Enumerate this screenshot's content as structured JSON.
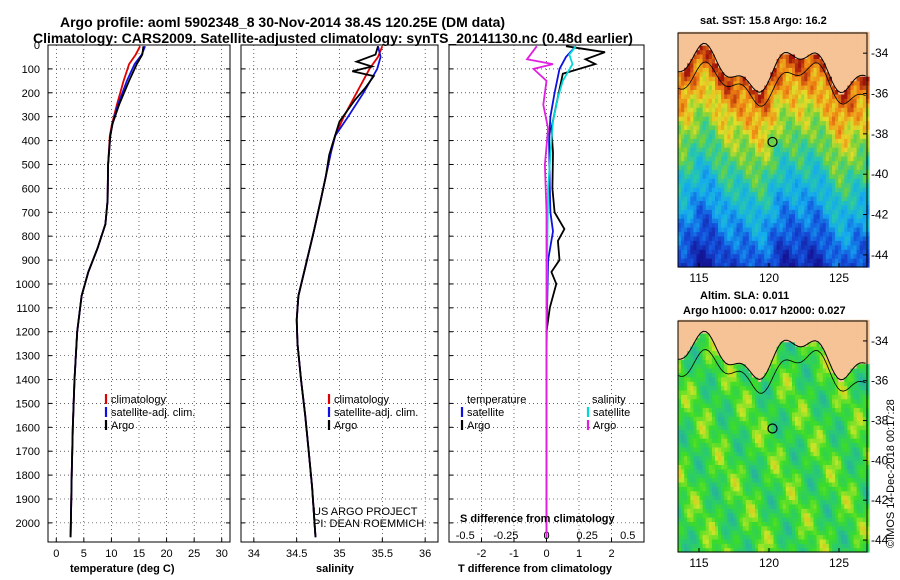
{
  "header": {
    "title_line1": "Argo profile: aoml 5902348_8 30-Nov-2014 38.4S 120.25E (DM data)",
    "title_line2": "Climatology: CARS2009. Satellite-adjusted climatology: synTS_20141130.nc (0.48d earlier)"
  },
  "depth_ticks": [
    "0",
    "100",
    "200",
    "300",
    "400",
    "500",
    "600",
    "700",
    "800",
    "900",
    "1000",
    "1100",
    "1200",
    "1300",
    "1400",
    "1500",
    "1600",
    "1700",
    "1800",
    "1900",
    "2000"
  ],
  "colors": {
    "climatology": "#e00000",
    "satellite": "#1010e0",
    "argo": "#000000",
    "sal_satellite": "#00d8d8",
    "sal_argo": "#e020e0"
  },
  "chart_data": [
    {
      "type": "line",
      "xlabel": "temperature (deg C)",
      "xticks": [
        "0",
        "5",
        "10",
        "15",
        "20",
        "25",
        "30"
      ],
      "xlim": [
        -1.5,
        31.5
      ],
      "ylim": [
        2080,
        0
      ],
      "legend": [
        "climatology",
        "satellite-adj. clim.",
        "Argo"
      ],
      "series": [
        {
          "name": "climatology",
          "color": "#e00000",
          "points": [
            [
              15.2,
              5
            ],
            [
              14.4,
              40
            ],
            [
              13.2,
              80
            ],
            [
              12.2,
              150
            ],
            [
              11.0,
              250
            ],
            [
              10.1,
              330
            ],
            [
              9.7,
              380
            ],
            [
              9.4,
              500
            ],
            [
              9.3,
              650
            ],
            [
              8.9,
              750
            ],
            [
              7.5,
              850
            ],
            [
              5.8,
              950
            ],
            [
              4.6,
              1050
            ],
            [
              3.8,
              1200
            ],
            [
              3.3,
              1400
            ],
            [
              3.0,
              1600
            ],
            [
              2.8,
              1800
            ],
            [
              2.6,
              2060
            ]
          ]
        },
        {
          "name": "satellite-adj. clim.",
          "color": "#1010e0",
          "points": [
            [
              16.1,
              5
            ],
            [
              15.5,
              40
            ],
            [
              14.2,
              80
            ],
            [
              12.8,
              150
            ],
            [
              11.2,
              250
            ],
            [
              10.2,
              330
            ],
            [
              9.8,
              380
            ],
            [
              9.4,
              500
            ],
            [
              9.3,
              650
            ],
            [
              8.9,
              750
            ],
            [
              7.5,
              850
            ],
            [
              5.8,
              950
            ],
            [
              4.6,
              1050
            ],
            [
              3.8,
              1200
            ],
            [
              3.3,
              1400
            ],
            [
              3.0,
              1600
            ],
            [
              2.8,
              1800
            ],
            [
              2.6,
              2060
            ]
          ]
        },
        {
          "name": "Argo",
          "color": "#000000",
          "points": [
            [
              15.8,
              5
            ],
            [
              15.6,
              40
            ],
            [
              14.6,
              80
            ],
            [
              13.2,
              150
            ],
            [
              11.4,
              250
            ],
            [
              10.2,
              330
            ],
            [
              9.8,
              380
            ],
            [
              9.4,
              500
            ],
            [
              9.3,
              650
            ],
            [
              8.9,
              750
            ],
            [
              7.5,
              850
            ],
            [
              5.8,
              950
            ],
            [
              4.6,
              1050
            ],
            [
              3.8,
              1200
            ],
            [
              3.3,
              1400
            ],
            [
              3.0,
              1600
            ],
            [
              2.8,
              1800
            ],
            [
              2.6,
              2060
            ]
          ]
        }
      ]
    },
    {
      "type": "line",
      "xlabel": "salinity",
      "xticks": [
        "34",
        "34.5",
        "35",
        "35.5",
        "36"
      ],
      "xlim": [
        33.85,
        36.15
      ],
      "ylim": [
        2080,
        0
      ],
      "legend": [
        "climatology",
        "satellite-adj. clim.",
        "Argo"
      ],
      "annotation": [
        "US ARGO PROJECT",
        "PI: DEAN ROEMMICH"
      ],
      "series": [
        {
          "name": "climatology",
          "color": "#e00000",
          "points": [
            [
              35.5,
              5
            ],
            [
              35.45,
              50
            ],
            [
              35.35,
              100
            ],
            [
              35.2,
              200
            ],
            [
              35.05,
              300
            ],
            [
              34.95,
              380
            ],
            [
              34.9,
              450
            ],
            [
              34.84,
              550
            ],
            [
              34.78,
              650
            ],
            [
              34.7,
              780
            ],
            [
              34.62,
              900
            ],
            [
              34.52,
              1050
            ],
            [
              34.5,
              1150
            ],
            [
              34.51,
              1250
            ],
            [
              34.55,
              1400
            ],
            [
              34.6,
              1550
            ],
            [
              34.64,
              1700
            ],
            [
              34.68,
              1850
            ],
            [
              34.72,
              2060
            ]
          ]
        },
        {
          "name": "satellite-adj. clim.",
          "color": "#1010e0",
          "points": [
            [
              35.45,
              5
            ],
            [
              35.48,
              50
            ],
            [
              35.44,
              100
            ],
            [
              35.28,
              200
            ],
            [
              35.1,
              300
            ],
            [
              34.95,
              380
            ],
            [
              34.9,
              450
            ],
            [
              34.84,
              550
            ],
            [
              34.78,
              650
            ],
            [
              34.7,
              780
            ],
            [
              34.62,
              900
            ],
            [
              34.52,
              1050
            ],
            [
              34.5,
              1150
            ],
            [
              34.51,
              1250
            ],
            [
              34.55,
              1400
            ],
            [
              34.6,
              1550
            ],
            [
              34.64,
              1700
            ],
            [
              34.68,
              1850
            ],
            [
              34.72,
              2060
            ]
          ]
        },
        {
          "name": "Argo",
          "color": "#000000",
          "points": [
            [
              35.45,
              5
            ],
            [
              35.42,
              40
            ],
            [
              35.2,
              70
            ],
            [
              35.38,
              90
            ],
            [
              35.15,
              110
            ],
            [
              35.4,
              130
            ],
            [
              35.3,
              180
            ],
            [
              35.18,
              230
            ],
            [
              35.0,
              320
            ],
            [
              34.93,
              400
            ],
            [
              34.88,
              460
            ],
            [
              34.84,
              550
            ],
            [
              34.78,
              650
            ],
            [
              34.7,
              780
            ],
            [
              34.62,
              900
            ],
            [
              34.52,
              1050
            ],
            [
              34.5,
              1150
            ],
            [
              34.51,
              1250
            ],
            [
              34.55,
              1400
            ],
            [
              34.6,
              1550
            ],
            [
              34.64,
              1700
            ],
            [
              34.68,
              1850
            ],
            [
              34.72,
              2060
            ]
          ]
        }
      ]
    },
    {
      "type": "line",
      "xlabel": "T difference from climatology",
      "xlabel2": "S difference from climatology",
      "xticks": [
        "-2",
        "-1",
        "0",
        "1",
        "2"
      ],
      "xticks2": [
        "-0.5",
        "-0.25",
        "0",
        "0.25",
        "0.5"
      ],
      "xlim": [
        -3,
        3
      ],
      "ylim": [
        2080,
        0
      ],
      "legend_left": [
        "temperature",
        "satellite",
        "Argo"
      ],
      "legend_right": [
        "salinity",
        "satellite",
        "Argo"
      ],
      "series": [
        {
          "name": "satellite",
          "color": "#1010e0",
          "points": [
            [
              0.9,
              5
            ],
            [
              0.6,
              50
            ],
            [
              0.4,
              100
            ],
            [
              0.25,
              200
            ],
            [
              0.12,
              300
            ],
            [
              0.08,
              400
            ],
            [
              0.1,
              600
            ],
            [
              0.12,
              700
            ],
            [
              0.2,
              780
            ],
            [
              0.05,
              900
            ],
            [
              0.02,
              1100
            ],
            [
              0,
              1300
            ],
            [
              0,
              2060
            ]
          ]
        },
        {
          "name": "Argo",
          "color": "#000000",
          "points": [
            [
              0.6,
              5
            ],
            [
              1.8,
              30
            ],
            [
              1.2,
              60
            ],
            [
              1.5,
              80
            ],
            [
              0.5,
              120
            ],
            [
              0.3,
              250
            ],
            [
              0.15,
              350
            ],
            [
              0.2,
              450
            ],
            [
              0.18,
              600
            ],
            [
              0.25,
              700
            ],
            [
              0.55,
              770
            ],
            [
              0.35,
              820
            ],
            [
              0.4,
              900
            ],
            [
              0.15,
              950
            ],
            [
              0.3,
              1000
            ],
            [
              0.1,
              1100
            ],
            [
              0,
              1200
            ],
            [
              0,
              2060
            ]
          ]
        },
        {
          "name": "salinity satellite",
          "color": "#00d8d8",
          "points": [
            [
              0.9,
              5
            ],
            [
              0.7,
              40
            ],
            [
              0.8,
              80
            ],
            [
              0.5,
              150
            ],
            [
              0.35,
              220
            ],
            [
              0.2,
              320
            ],
            [
              0.15,
              400
            ],
            [
              0.05,
              600
            ],
            [
              0.02,
              900
            ],
            [
              0,
              1200
            ],
            [
              0,
              2060
            ]
          ]
        },
        {
          "name": "salinity Argo",
          "color": "#e020e0",
          "points": [
            [
              -0.3,
              5
            ],
            [
              -0.6,
              60
            ],
            [
              0.2,
              80
            ],
            [
              -0.4,
              100
            ],
            [
              0,
              150
            ],
            [
              -0.1,
              250
            ],
            [
              0.05,
              350
            ],
            [
              -0.05,
              500
            ],
            [
              0,
              700
            ],
            [
              0,
              2060
            ]
          ]
        }
      ]
    },
    {
      "type": "heatmap",
      "title": "sat. SST: 15.8 Argo: 16.2",
      "xticks": [
        "115",
        "120",
        "125"
      ],
      "yticks": [
        "-34",
        "-36",
        "-38",
        "-40",
        "-42",
        "-44"
      ],
      "xlim": [
        113.5,
        127
      ],
      "ylim": [
        -44.6,
        -33
      ]
    },
    {
      "type": "heatmap",
      "title1": "Altim. SLA: 0.011",
      "title2": "Argo h1000: 0.017 h2000: 0.027",
      "xticks": [
        "115",
        "120",
        "125"
      ],
      "yticks": [
        "-34",
        "-36",
        "-38",
        "-40",
        "-42",
        "-44"
      ],
      "xlim": [
        113.5,
        127
      ],
      "ylim": [
        -44.6,
        -33
      ]
    }
  ],
  "footer": {
    "stamp": "©IMOS 14-Dec-2018 00:17:28"
  }
}
